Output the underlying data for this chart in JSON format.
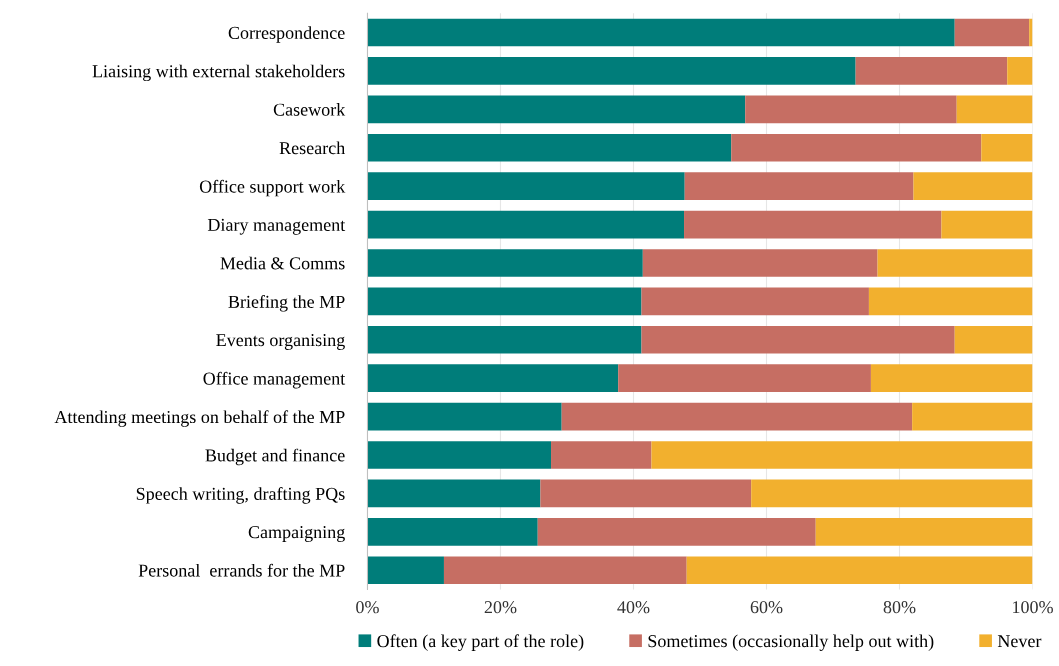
{
  "chart_data": {
    "type": "bar",
    "orientation": "horizontal",
    "stacked": true,
    "categories": [
      "Correspondence",
      "Liaising with external stakeholders",
      "Casework",
      "Research",
      "Office support work",
      "Diary management",
      "Media & Comms",
      "Briefing the MP",
      "Events organising",
      "Office management",
      "Attending meetings on behalf of the MP",
      "Budget and finance",
      "Speech writing, drafting PQs",
      "Campaigning",
      "Personal  errands for the MP"
    ],
    "series": [
      {
        "name": "Often (a key part of the role)",
        "color": "#007d7a",
        "values": [
          88.3,
          73.4,
          56.8,
          54.7,
          47.7,
          47.6,
          41.4,
          41.2,
          41.2,
          37.7,
          29.2,
          27.6,
          26.0,
          25.6,
          11.5
        ]
      },
      {
        "name": "Sometimes (occasionally help out with)",
        "color": "#c66e63",
        "values": [
          11.2,
          22.8,
          31.8,
          37.6,
          34.4,
          38.7,
          35.3,
          34.2,
          47.1,
          38.0,
          52.7,
          15.1,
          31.7,
          41.8,
          36.5
        ]
      },
      {
        "name": "Never",
        "color": "#f2b02e",
        "values": [
          0.5,
          3.8,
          11.4,
          7.7,
          17.9,
          13.7,
          23.3,
          24.6,
          11.7,
          24.3,
          18.1,
          57.3,
          42.3,
          32.6,
          52.0
        ]
      }
    ],
    "xlim": [
      0,
      100
    ],
    "xticks": [
      {
        "value": 0,
        "label": "0%"
      },
      {
        "value": 20,
        "label": "20%"
      },
      {
        "value": 40,
        "label": "40%"
      },
      {
        "value": 60,
        "label": "60%"
      },
      {
        "value": 80,
        "label": "80%"
      },
      {
        "value": 100,
        "label": "100%"
      }
    ],
    "grid": "x",
    "legend": "bottom"
  }
}
